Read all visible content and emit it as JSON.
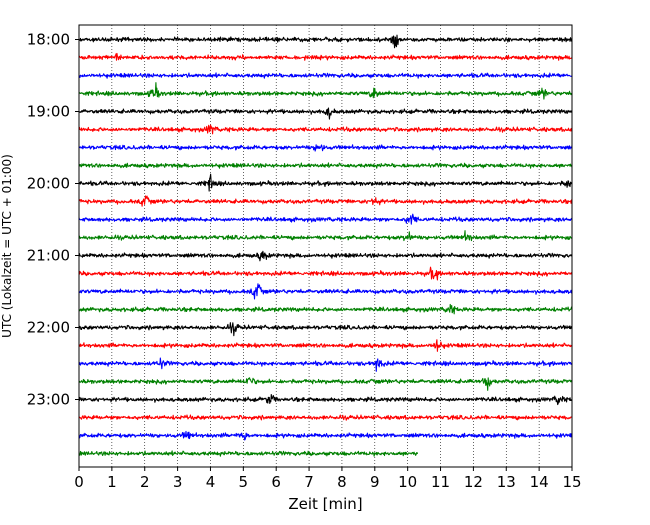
{
  "chart_data": {
    "type": "line",
    "title": "",
    "xlabel": "Zeit  [min]",
    "ylabel": "UTC (Lokalzeit = UTC + 01:00)",
    "xlim": [
      0,
      15
    ],
    "x_ticks": [
      "0",
      "1",
      "2",
      "3",
      "4",
      "5",
      "6",
      "7",
      "8",
      "9",
      "10",
      "11",
      "12",
      "13",
      "14",
      "15"
    ],
    "y_tick_labels": [
      "18:00",
      "19:00",
      "20:00",
      "21:00",
      "22:00",
      "23:00"
    ],
    "grid": "vertical-dotted",
    "traces_per_hour": 4,
    "minutes_per_trace": 15,
    "start_time": "17:45",
    "trace_count": 24,
    "last_trace_end_min": 10.3,
    "trace_colors": [
      "#000000",
      "#ff0000",
      "#0000ff",
      "#008000"
    ],
    "events": [
      {
        "trace": 0,
        "x": 9.6,
        "amp": 1.0
      },
      {
        "trace": 1,
        "x": 1.2,
        "amp": 0.6
      },
      {
        "trace": 3,
        "x": 2.3,
        "amp": 1.0
      },
      {
        "trace": 3,
        "x": 9.0,
        "amp": 0.8
      },
      {
        "trace": 3,
        "x": 14.1,
        "amp": 0.6
      },
      {
        "trace": 4,
        "x": 7.6,
        "amp": 0.7
      },
      {
        "trace": 5,
        "x": 4.0,
        "amp": 0.6
      },
      {
        "trace": 6,
        "x": 7.3,
        "amp": 0.6
      },
      {
        "trace": 8,
        "x": 4.0,
        "amp": 1.0
      },
      {
        "trace": 8,
        "x": 14.9,
        "amp": 0.6
      },
      {
        "trace": 9,
        "x": 2.0,
        "amp": 0.7
      },
      {
        "trace": 9,
        "x": 9.0,
        "amp": 0.6
      },
      {
        "trace": 10,
        "x": 10.1,
        "amp": 0.9
      },
      {
        "trace": 11,
        "x": 10.0,
        "amp": 0.7
      },
      {
        "trace": 11,
        "x": 11.8,
        "amp": 0.6
      },
      {
        "trace": 12,
        "x": 5.6,
        "amp": 0.7
      },
      {
        "trace": 13,
        "x": 10.8,
        "amp": 0.9
      },
      {
        "trace": 14,
        "x": 5.4,
        "amp": 1.2
      },
      {
        "trace": 15,
        "x": 11.3,
        "amp": 0.6
      },
      {
        "trace": 16,
        "x": 4.7,
        "amp": 0.7
      },
      {
        "trace": 17,
        "x": 10.9,
        "amp": 0.9
      },
      {
        "trace": 18,
        "x": 9.1,
        "amp": 0.9
      },
      {
        "trace": 18,
        "x": 2.5,
        "amp": 0.6
      },
      {
        "trace": 19,
        "x": 5.2,
        "amp": 0.6
      },
      {
        "trace": 19,
        "x": 12.4,
        "amp": 0.9
      },
      {
        "trace": 20,
        "x": 5.8,
        "amp": 0.7
      },
      {
        "trace": 20,
        "x": 14.6,
        "amp": 0.6
      },
      {
        "trace": 22,
        "x": 5.0,
        "amp": 0.7
      },
      {
        "trace": 22,
        "x": 3.3,
        "amp": 0.5
      }
    ]
  }
}
